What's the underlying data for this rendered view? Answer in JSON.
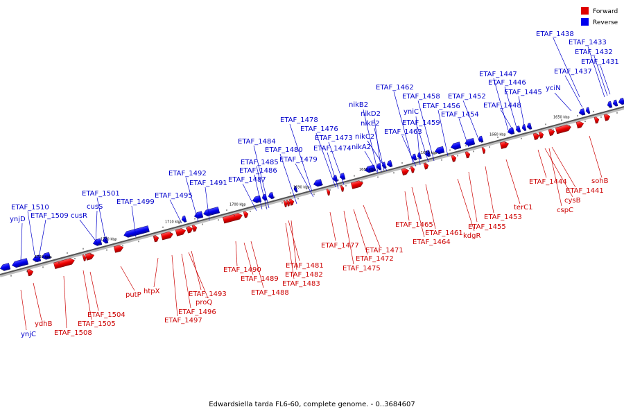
{
  "legend": [
    {
      "label": "Forward",
      "color": "#e00000"
    },
    {
      "label": "Reverse",
      "color": "#0000ee"
    }
  ],
  "caption": "Edwardsiella tarda FL6-60, complete genome. - 0..3684607",
  "ticks": [
    "1650 kbp",
    "1660 kbp",
    "1670 kbp",
    "1680 kbp",
    "1690 kbp",
    "1700 kbp",
    "1710 kbp",
    "1720 kbp",
    "1730 kbp"
  ],
  "reverse_labels": [
    "ETAF_1438",
    "ETAF_1433",
    "ETAF_1432",
    "ETAF_1431",
    "ETAF_1437",
    "yciN",
    "ETAF_1447",
    "ETAF_1446",
    "ETAF_1445",
    "ETAF_1448",
    "ETAF_1452",
    "ETAF_1454",
    "ETAF_1456",
    "ETAF_1458",
    "ETAF_1462",
    "yniC",
    "ETAF_1459",
    "ETAF_1463",
    "nikB2",
    "nikD2",
    "nikE2",
    "nikC2",
    "nikA2",
    "ETAF_1478",
    "ETAF_1476",
    "ETAF_1473",
    "ETAF_1474",
    "ETAF_1484",
    "ETAF_1480",
    "ETAF_1479",
    "ETAF_1485",
    "ETAF_1486",
    "ETAF_1487",
    "ETAF_1492",
    "ETAF_1491",
    "ETAF_1495",
    "ETAF_1501",
    "ETAF_1499",
    "cusS",
    "cusR",
    "ETAF_1510",
    "ETAF_1509",
    "ynjD",
    "ynjC"
  ],
  "forward_labels": [
    "sohB",
    "ETAF_1444",
    "ETAF_1441",
    "cysB",
    "cspC",
    "terC1",
    "ETAF_1453",
    "ETAF_1455",
    "kdgR",
    "ETAF_1461",
    "ETAF_1464",
    "ETAF_1465",
    "ETAF_1471",
    "ETAF_1472",
    "ETAF_1475",
    "ETAF_1477",
    "ETAF_1481",
    "ETAF_1482",
    "ETAF_1483",
    "ETAF_1490",
    "ETAF_1489",
    "ETAF_1488",
    "ETAF_1493",
    "proQ",
    "ETAF_1496",
    "ETAF_1497",
    "htpX",
    "putP",
    "ETAF_1504",
    "ETAF_1505",
    "ETAF_1508",
    "ydhB"
  ]
}
